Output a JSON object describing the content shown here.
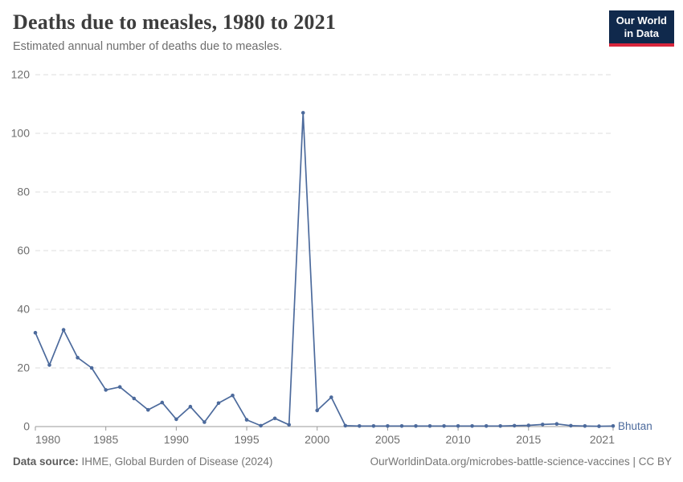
{
  "header": {
    "title": "Deaths due to measles, 1980 to 2021",
    "subtitle": "Estimated annual number of deaths due to measles.",
    "logo": {
      "line1": "Our World",
      "line2": "in Data",
      "bg_color": "#10294c",
      "accent_color": "#d8263c"
    }
  },
  "chart_data": {
    "type": "line",
    "title": "Deaths due to measles, 1980 to 2021",
    "xlabel": "",
    "ylabel": "",
    "xlim": [
      1980,
      2021
    ],
    "ylim": [
      0,
      120
    ],
    "y_ticks": [
      0,
      20,
      40,
      60,
      80,
      100,
      120
    ],
    "x_ticks": [
      1980,
      1985,
      1990,
      1995,
      2000,
      2005,
      2010,
      2015,
      2021
    ],
    "grid": "horizontal-dashed",
    "legend": "end-of-line-label",
    "grid_color": "#dedede",
    "axis_color": "#9a9a9a",
    "tick_label_color": "#6e6e6e",
    "series": [
      {
        "name": "Bhutan",
        "color": "#4c6a9c",
        "x": [
          1980,
          1981,
          1982,
          1983,
          1984,
          1985,
          1986,
          1987,
          1988,
          1989,
          1990,
          1991,
          1992,
          1993,
          1994,
          1995,
          1996,
          1997,
          1998,
          1999,
          2000,
          2001,
          2002,
          2003,
          2004,
          2005,
          2006,
          2007,
          2008,
          2009,
          2010,
          2011,
          2012,
          2013,
          2014,
          2015,
          2016,
          2017,
          2018,
          2019,
          2020,
          2021
        ],
        "values": [
          32,
          21,
          33,
          23.5,
          20,
          12.5,
          13.5,
          9.6,
          5.7,
          8.2,
          2.5,
          6.8,
          1.5,
          8,
          10.6,
          2.3,
          0.3,
          2.8,
          0.6,
          107,
          5.5,
          10,
          0.3,
          0.2,
          0.2,
          0.2,
          0.2,
          0.2,
          0.2,
          0.2,
          0.2,
          0.2,
          0.2,
          0.2,
          0.3,
          0.4,
          0.7,
          0.9,
          0.3,
          0.2,
          0.1,
          0.2
        ]
      }
    ]
  },
  "footer": {
    "source_label": "Data source:",
    "source_text": "IHME, Global Burden of Disease (2024)",
    "credit": "OurWorldinData.org/microbes-battle-science-vaccines | CC BY"
  }
}
